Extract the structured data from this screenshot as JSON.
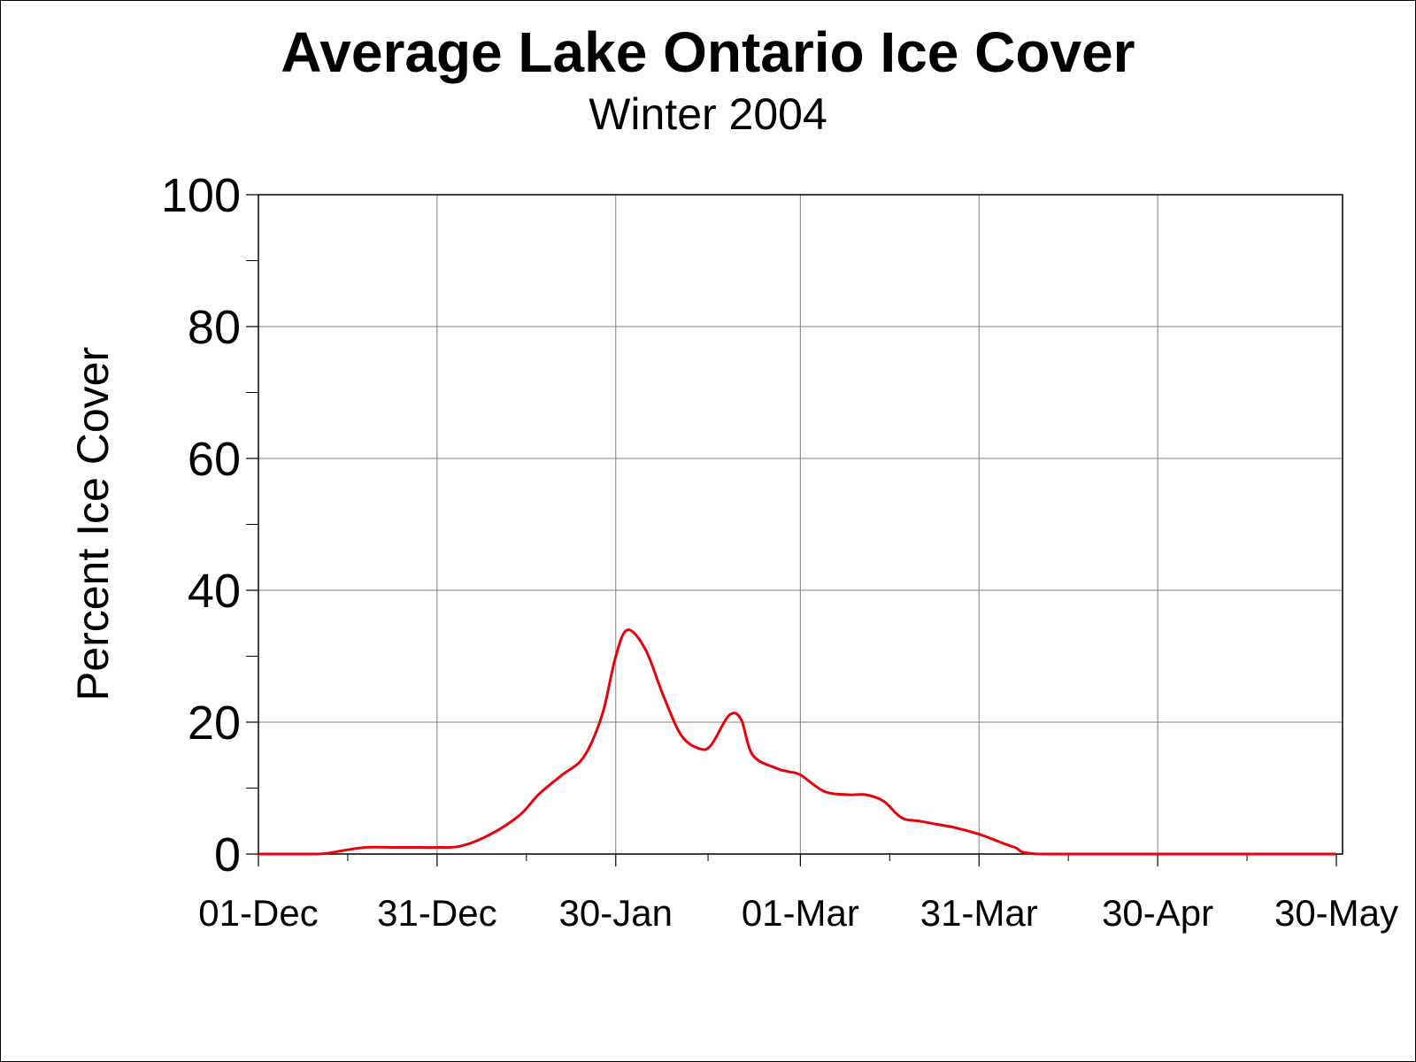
{
  "chart_data": {
    "type": "line",
    "title": "Average Lake Ontario Ice Cover",
    "subtitle": "Winter 2004",
    "xlabel": "",
    "ylabel": "Percent Ice Cover",
    "ylim": [
      0,
      100
    ],
    "yticks": [
      0,
      20,
      40,
      60,
      80,
      100
    ],
    "xlim": [
      "01-Dec",
      "30-May"
    ],
    "xticks": [
      "01-Dec",
      "31-Dec",
      "30-Jan",
      "01-Mar",
      "31-Mar",
      "30-Apr",
      "30-May"
    ],
    "grid": true,
    "legend": "none",
    "series": [
      {
        "color": "#e8000b",
        "x": [
          "01-Dec",
          "11-Dec",
          "15-Dec",
          "19-Dec",
          "24-Dec",
          "28-Dec",
          "31-Dec",
          "04-Jan",
          "09-Jan",
          "14-Jan",
          "17-Jan",
          "21-Jan",
          "24-Jan",
          "26-Jan",
          "28-Jan",
          "30-Jan",
          "01-Feb",
          "04-Feb",
          "07-Feb",
          "10-Feb",
          "13-Feb",
          "15-Feb",
          "18-Feb",
          "20-Feb",
          "22-Feb",
          "26-Feb",
          "28-Feb",
          "01-Mar",
          "05-Mar",
          "09-Mar",
          "12-Mar",
          "15-Mar",
          "18-Mar",
          "21-Mar",
          "24-Mar",
          "27-Mar",
          "31-Mar",
          "03-Apr",
          "06-Apr",
          "10-Apr",
          "30-Apr",
          "30-May"
        ],
        "y": [
          0,
          0,
          0.5,
          1,
          1,
          1,
          1,
          1.2,
          3,
          6,
          9,
          12,
          14,
          17,
          22,
          30,
          34,
          31,
          24,
          18,
          16,
          16.5,
          21,
          20.5,
          15,
          13,
          12.5,
          12,
          9.5,
          9,
          9,
          8,
          5.5,
          5,
          4.5,
          4,
          3,
          2,
          1,
          0,
          0,
          0
        ]
      }
    ]
  }
}
